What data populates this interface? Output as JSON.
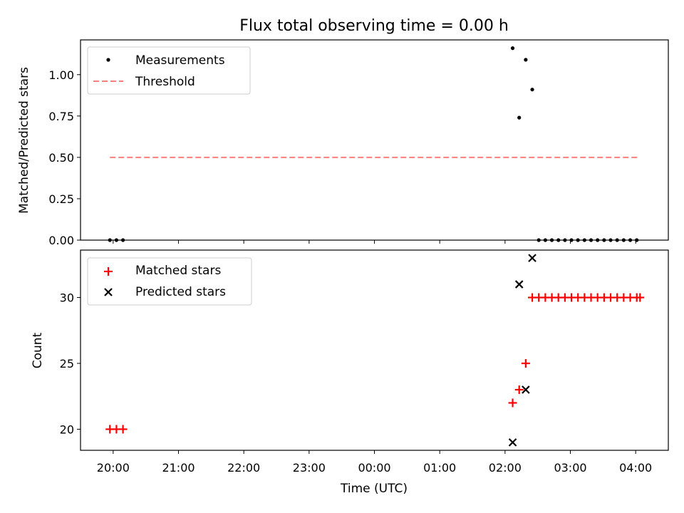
{
  "chart_data": [
    {
      "type": "scatter",
      "title": "Flux total observing time = 0.00 h",
      "xlabel": "",
      "ylabel": "Matched/Predicted stars",
      "ylim": [
        0.0,
        1.21
      ],
      "yticks": [
        "0.00",
        "0.25",
        "0.50",
        "0.75",
        "1.00"
      ],
      "ytick_values": [
        0.0,
        0.25,
        0.5,
        0.75,
        1.0
      ],
      "grid": false,
      "legend_position": "top-left",
      "legend": [
        "Measurements",
        "Threshold"
      ],
      "threshold": {
        "name": "Threshold",
        "y": 0.5,
        "x_start": "19:57",
        "x_end": "04:03",
        "color": "#ff7f7f"
      },
      "series": [
        {
          "name": "Measurements",
          "color": "#000000",
          "x": [
            "19:57",
            "20:03",
            "20:09",
            "02:07",
            "02:13",
            "02:19",
            "02:25",
            "02:31",
            "02:37",
            "02:43",
            "02:49",
            "02:55",
            "03:01",
            "03:07",
            "03:13",
            "03:19",
            "03:25",
            "03:31",
            "03:37",
            "03:43",
            "03:49",
            "03:55",
            "04:01"
          ],
          "y": [
            0.0,
            0.0,
            0.0,
            1.16,
            0.74,
            1.09,
            0.91,
            0.0,
            0.0,
            0.0,
            0.0,
            0.0,
            0.0,
            0.0,
            0.0,
            0.0,
            0.0,
            0.0,
            0.0,
            0.0,
            0.0,
            0.0,
            0.0
          ]
        }
      ]
    },
    {
      "type": "scatter",
      "title": "",
      "xlabel": "Time (UTC)",
      "ylabel": "Count",
      "ylim": [
        18.4,
        33.6
      ],
      "yticks": [
        "20",
        "25",
        "30"
      ],
      "ytick_values": [
        20,
        25,
        30
      ],
      "xticks": [
        "20:00",
        "21:00",
        "22:00",
        "23:00",
        "00:00",
        "01:00",
        "02:00",
        "03:00",
        "04:00"
      ],
      "grid": false,
      "legend_position": "top-left",
      "legend": [
        "Matched stars",
        "Predicted stars"
      ],
      "series": [
        {
          "name": "Matched stars",
          "marker": "plus",
          "color": "#ff0000",
          "x": [
            "19:57",
            "20:03",
            "20:09",
            "02:07",
            "02:13",
            "02:19",
            "02:25",
            "02:31",
            "02:37",
            "02:43",
            "02:49",
            "02:55",
            "03:01",
            "03:07",
            "03:13",
            "03:19",
            "03:25",
            "03:31",
            "03:37",
            "03:43",
            "03:49",
            "03:55",
            "04:01",
            "04:04"
          ],
          "y": [
            20,
            20,
            20,
            22,
            23,
            25,
            30,
            30,
            30,
            30,
            30,
            30,
            30,
            30,
            30,
            30,
            30,
            30,
            30,
            30,
            30,
            30,
            30,
            30
          ]
        },
        {
          "name": "Predicted stars",
          "marker": "x",
          "color": "#000000",
          "x": [
            "02:07",
            "02:13",
            "02:19",
            "02:25"
          ],
          "y": [
            19,
            31,
            23,
            33
          ]
        }
      ]
    }
  ],
  "x_axis": {
    "start": "19:30",
    "end": "04:30",
    "ticks": [
      "20:00",
      "21:00",
      "22:00",
      "23:00",
      "00:00",
      "01:00",
      "02:00",
      "03:00",
      "04:00"
    ]
  }
}
